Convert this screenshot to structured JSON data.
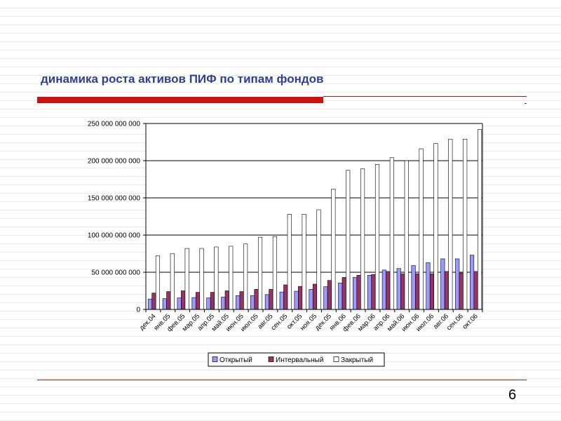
{
  "slide": {
    "title": "динамика роста активов ПИФ по типам фондов",
    "page_number": "6"
  },
  "chart_data": {
    "type": "bar",
    "title": "",
    "xlabel": "",
    "ylabel": "",
    "ylim": [
      0,
      250000000000
    ],
    "yticks": [
      0,
      50000000000,
      100000000000,
      150000000000,
      200000000000,
      250000000000
    ],
    "ytick_labels": [
      "0",
      "50 000 000 000",
      "100 000 000 000",
      "150 000 000 000",
      "200 000 000 000",
      "250 000 000 000"
    ],
    "grid": true,
    "legend_position": "bottom",
    "categories": [
      "дек.04",
      "янв.05",
      "фев.05",
      "мар.05",
      "апр.05",
      "май.05",
      "июн.05",
      "июл.05",
      "авг.05",
      "сен.05",
      "окт.05",
      "ноя.05",
      "дек.05",
      "янв.06",
      "фев.06",
      "мар.06",
      "апр.06",
      "май.06",
      "июн.06",
      "июл.06",
      "авг.06",
      "сен.06",
      "окт.06"
    ],
    "series": [
      {
        "name": "Открытый",
        "color": "#9999ff",
        "values": [
          14000000000,
          14500000000,
          15500000000,
          16000000000,
          15500000000,
          16500000000,
          18500000000,
          18500000000,
          20000000000,
          23500000000,
          24500000000,
          27000000000,
          30500000000,
          35500000000,
          43000000000,
          46000000000,
          53000000000,
          55000000000,
          59000000000,
          63000000000,
          68000000000,
          68000000000,
          73000000000
        ]
      },
      {
        "name": "Интервальный",
        "color": "#993366",
        "values": [
          22000000000,
          24000000000,
          25000000000,
          23000000000,
          23000000000,
          25000000000,
          24000000000,
          27000000000,
          27000000000,
          33000000000,
          31000000000,
          34000000000,
          39000000000,
          43000000000,
          46000000000,
          47000000000,
          51000000000,
          48000000000,
          48000000000,
          48000000000,
          51000000000,
          49000000000,
          51000000000
        ]
      },
      {
        "name": "Закрытый",
        "color": "#ffffff",
        "values": [
          72000000000,
          75000000000,
          82000000000,
          82000000000,
          84000000000,
          85000000000,
          88000000000,
          97000000000,
          98000000000,
          128000000000,
          128000000000,
          134000000000,
          162000000000,
          187000000000,
          189000000000,
          195000000000,
          204000000000,
          200000000000,
          216000000000,
          223000000000,
          229000000000,
          229000000000,
          242000000000
        ]
      }
    ]
  }
}
